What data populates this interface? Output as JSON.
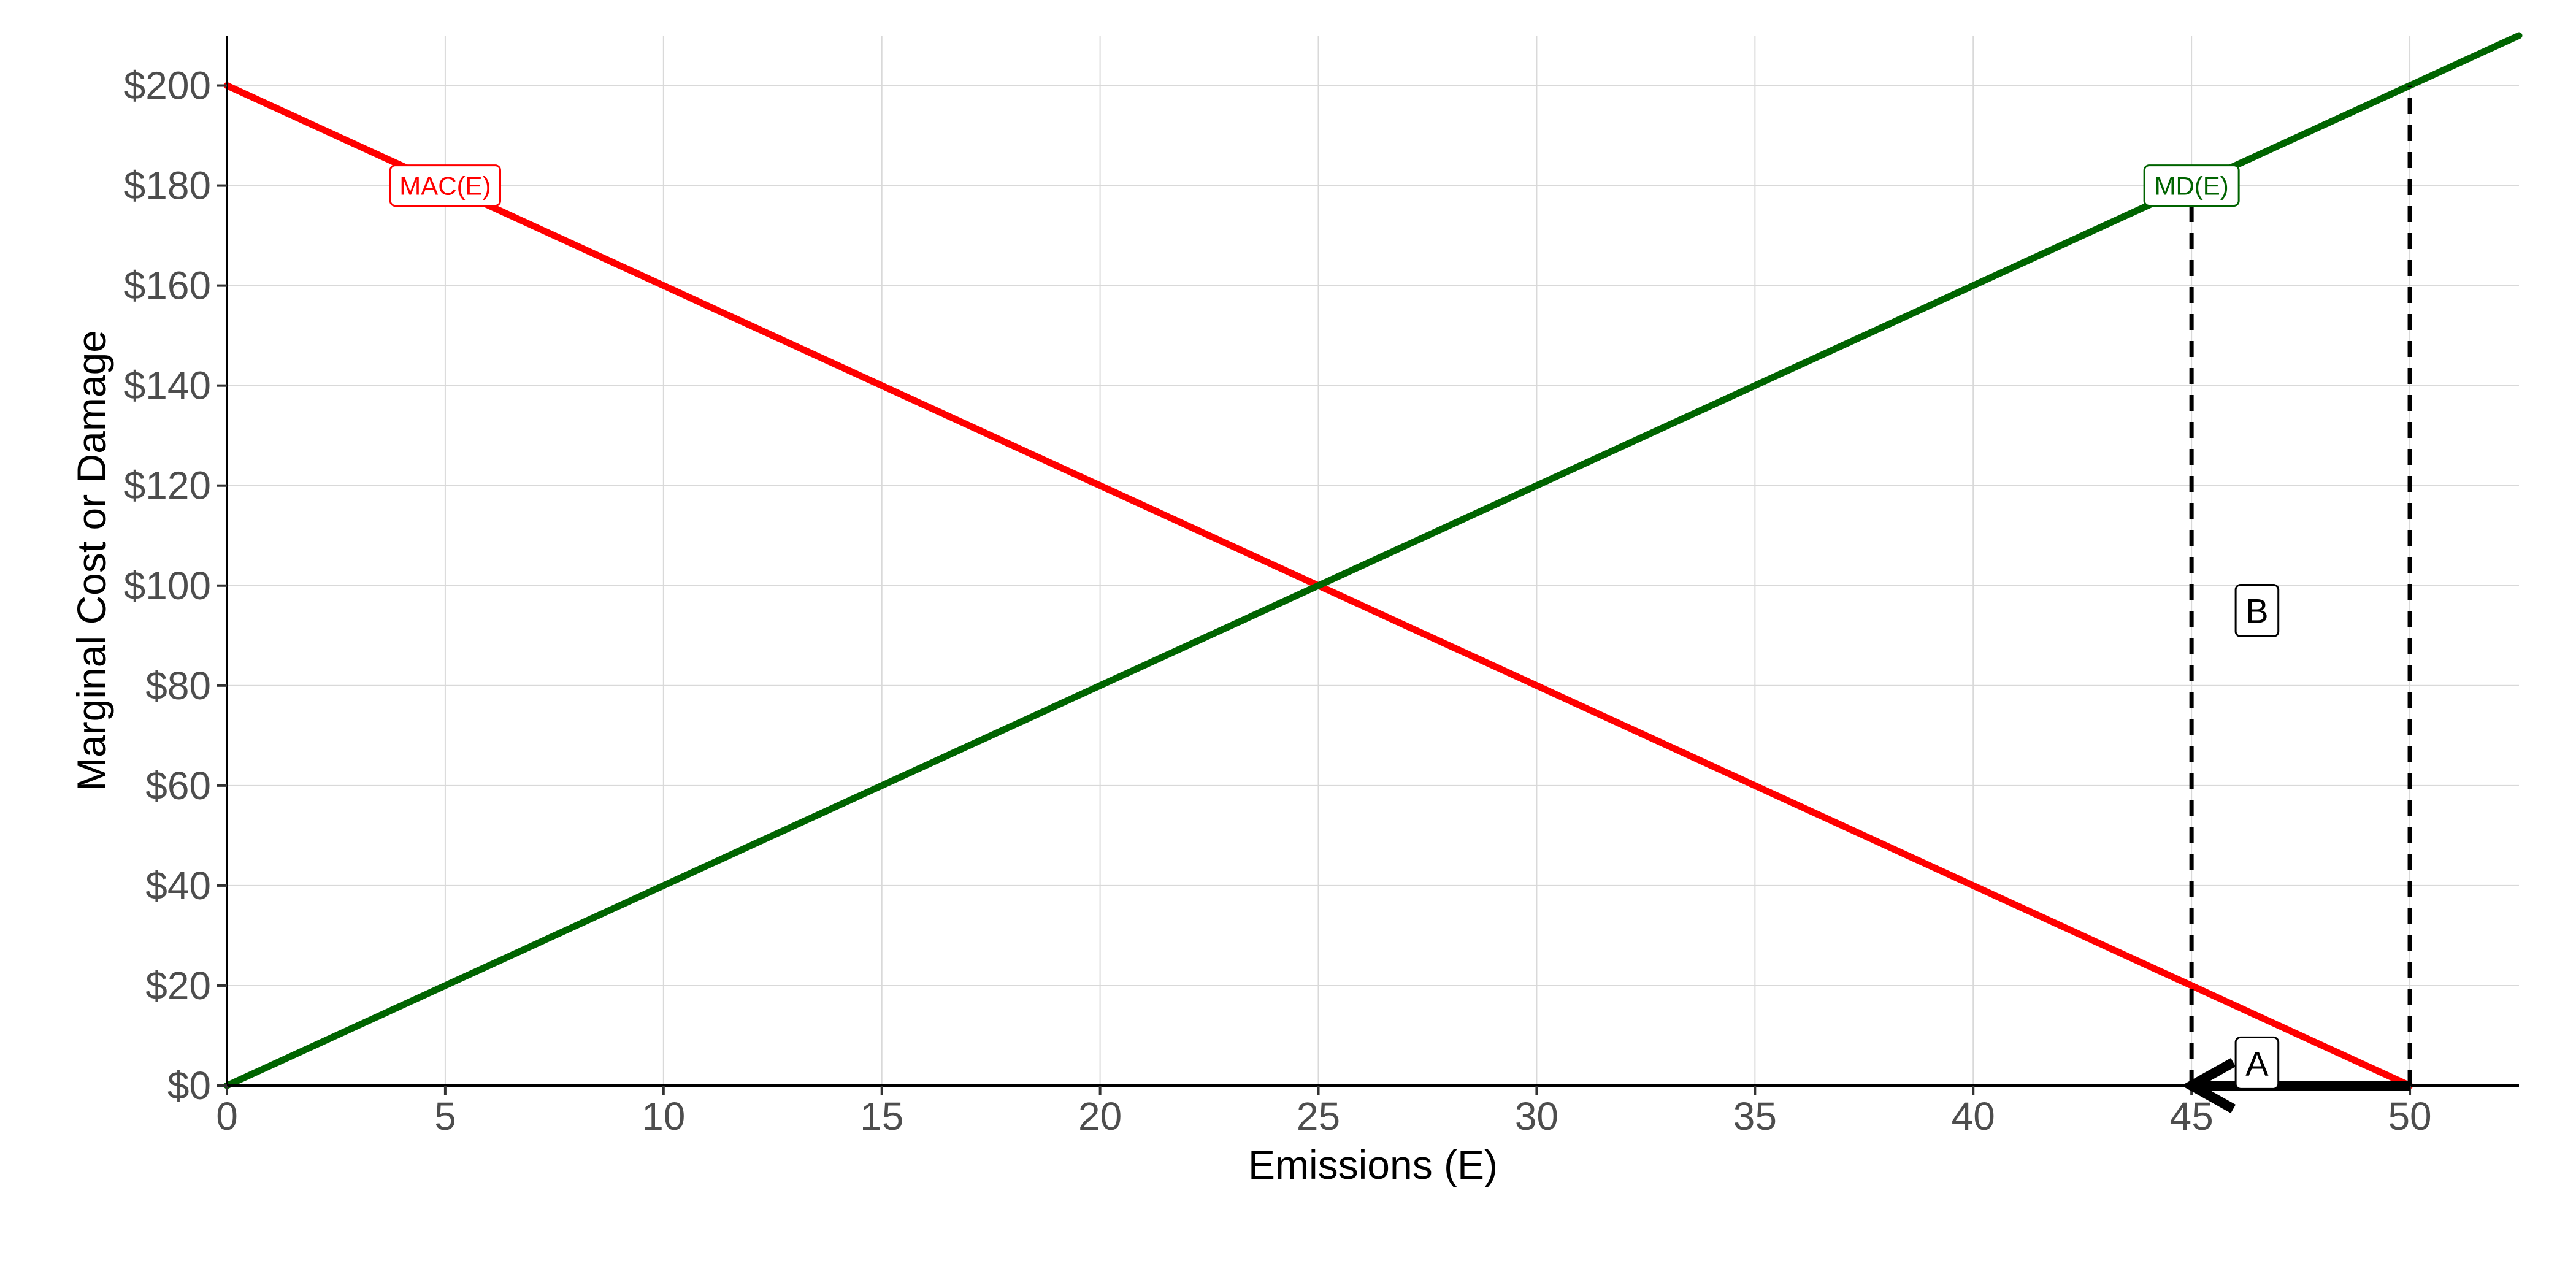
{
  "chart_data": {
    "type": "line",
    "xlabel": "Emissions (E)",
    "ylabel": "Marginal Cost or Damage",
    "xlim": [
      0,
      52.5
    ],
    "ylim": [
      0,
      210
    ],
    "x_ticks": [
      0,
      5,
      10,
      15,
      20,
      25,
      30,
      35,
      40,
      45,
      50
    ],
    "y_ticks": [
      0,
      20,
      40,
      60,
      80,
      100,
      120,
      140,
      160,
      180,
      200
    ],
    "y_tick_labels": [
      "$0",
      "$20",
      "$40",
      "$60",
      "$80",
      "$100",
      "$120",
      "$140",
      "$160",
      "$180",
      "$200"
    ],
    "grid": true,
    "series": [
      {
        "name": "MAC(E)",
        "color": "#ff0000",
        "x": [
          0,
          50
        ],
        "y": [
          200,
          0
        ]
      },
      {
        "name": "MD(E)",
        "color": "#006400",
        "x": [
          0,
          52.5
        ],
        "y": [
          0,
          210
        ]
      }
    ],
    "series_labels": [
      {
        "text": "MAC(E)",
        "x": 5,
        "y": 180,
        "color": "#ff0000"
      },
      {
        "text": "MD(E)",
        "x": 45,
        "y": 180,
        "color": "#006400"
      }
    ],
    "reference_lines": [
      {
        "x": 45,
        "y_from": 0,
        "y_to": 180,
        "style": "dashed"
      },
      {
        "x": 50,
        "y_from": 0,
        "y_to": 200,
        "style": "dashed"
      }
    ],
    "arrow": {
      "from": [
        50,
        0
      ],
      "to": [
        45,
        0
      ]
    },
    "annotations": [
      {
        "text": "A",
        "x": 46.5,
        "y": 4.5
      },
      {
        "text": "B",
        "x": 46.5,
        "y": 95
      }
    ]
  }
}
